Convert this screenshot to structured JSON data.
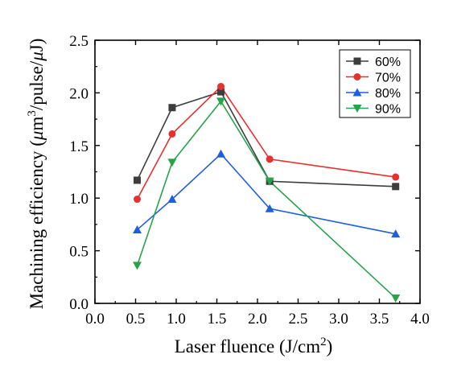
{
  "chart_data": {
    "type": "line",
    "xlabel": "Laser fluence (J/cm",
    "xlabel_sup": "2",
    "xlabel_end": ")",
    "ylabel_parts": [
      "Machining efficiency (",
      "μ",
      "m",
      "3",
      "/pulse/",
      "μ",
      "J)"
    ],
    "xlim": [
      0.0,
      4.0
    ],
    "ylim": [
      0.0,
      2.5
    ],
    "xticks": [
      "0.0",
      "0.5",
      "1.0",
      "1.5",
      "2.0",
      "2.5",
      "3.0",
      "3.5",
      "4.0"
    ],
    "yticks": [
      "0.0",
      "0.5",
      "1.0",
      "1.5",
      "2.0",
      "2.5"
    ],
    "legend_position": "top-right",
    "x": [
      0.52,
      0.95,
      1.55,
      2.15,
      3.7
    ],
    "series": [
      {
        "name": "60%",
        "color": "#3d3d3d",
        "marker": "square",
        "values": [
          1.17,
          1.86,
          2.01,
          1.16,
          1.11
        ]
      },
      {
        "name": "70%",
        "color": "#e8302e",
        "marker": "circle",
        "values": [
          0.99,
          1.61,
          2.06,
          1.37,
          1.2
        ]
      },
      {
        "name": "80%",
        "color": "#1f5fdc",
        "marker": "triangle-up",
        "values": [
          0.7,
          0.99,
          1.42,
          0.9,
          0.66
        ]
      },
      {
        "name": "90%",
        "color": "#28a34a",
        "marker": "triangle-down",
        "values": [
          0.36,
          1.34,
          1.92,
          1.16,
          0.05
        ]
      }
    ]
  }
}
